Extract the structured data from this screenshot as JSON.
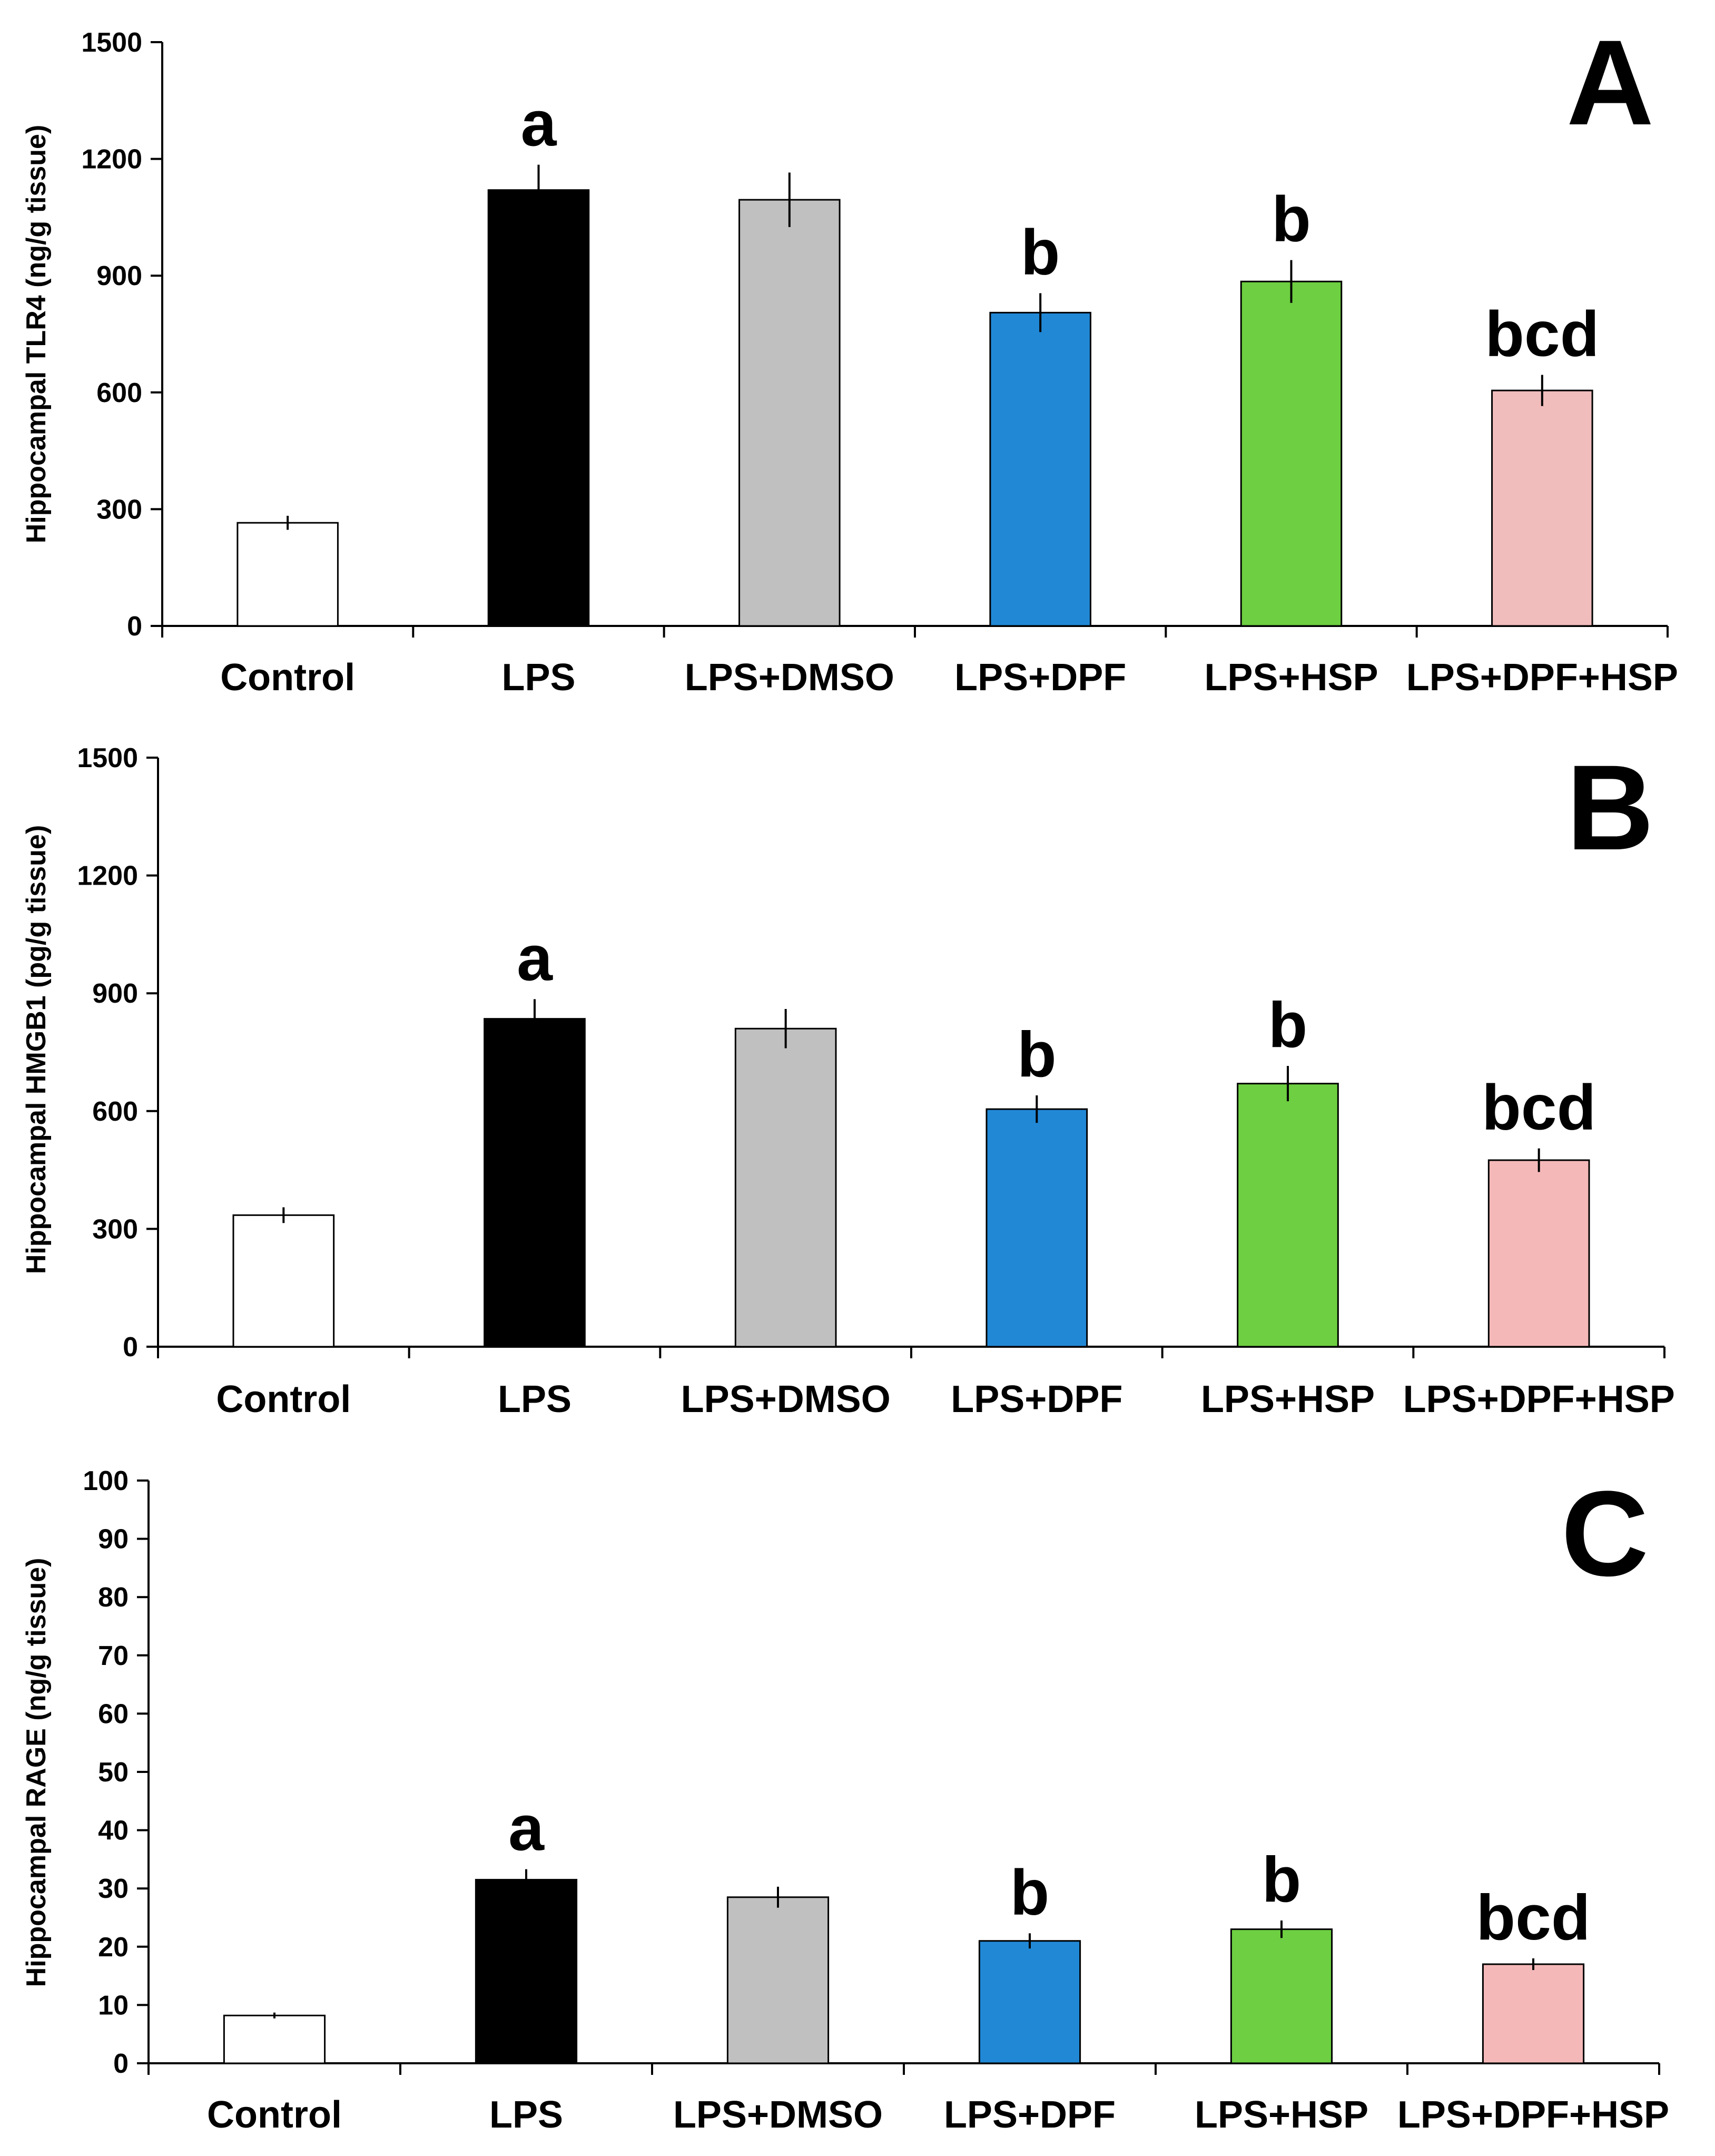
{
  "chart_data": [
    {
      "type": "bar",
      "panel_label": "A",
      "ylabel": "Hippocampal TLR4 (ng/g tissue)",
      "ylim": [
        0,
        1500
      ],
      "yticks": [
        0,
        300,
        600,
        900,
        1200,
        1500
      ],
      "categories": [
        "Control",
        "LPS",
        "LPS+DMSO",
        "LPS+DPF",
        "LPS+HSP",
        "LPS+DPF+HSP"
      ],
      "values": [
        265,
        1120,
        1095,
        805,
        885,
        605
      ],
      "errors": [
        18,
        65,
        70,
        50,
        55,
        40
      ],
      "significance": [
        "",
        "a",
        "",
        "b",
        "b",
        "bcd"
      ],
      "bar_colors": [
        "#ffffff",
        "#000000",
        "#c0c0c0",
        "#2188d6",
        "#6dcf41",
        "#f0bcbc"
      ]
    },
    {
      "type": "bar",
      "panel_label": "B",
      "ylabel": "Hippocampal HMGB1 (pg/g tissue)",
      "ylim": [
        0,
        1500
      ],
      "yticks": [
        0,
        300,
        600,
        900,
        1200,
        1500
      ],
      "categories": [
        "Control",
        "LPS",
        "LPS+DMSO",
        "LPS+DPF",
        "LPS+HSP",
        "LPS+DPF+HSP"
      ],
      "values": [
        335,
        835,
        810,
        605,
        670,
        475
      ],
      "errors": [
        20,
        50,
        50,
        35,
        45,
        30
      ],
      "significance": [
        "",
        "a",
        "",
        "b",
        "b",
        "bcd"
      ],
      "bar_colors": [
        "#ffffff",
        "#000000",
        "#c0c0c0",
        "#2188d6",
        "#6dcf41",
        "#f5b8b8"
      ]
    },
    {
      "type": "bar",
      "panel_label": "C",
      "ylabel": "Hippocampal RAGE (ng/g tissue)",
      "ylim": [
        0,
        100
      ],
      "yticks": [
        0,
        10,
        20,
        30,
        40,
        50,
        60,
        70,
        80,
        90,
        100
      ],
      "categories": [
        "Control",
        "LPS",
        "LPS+DMSO",
        "LPS+DPF",
        "LPS+HSP",
        "LPS+DPF+HSP"
      ],
      "values": [
        8.2,
        31.5,
        28.5,
        21,
        23,
        17
      ],
      "errors": [
        0.5,
        1.8,
        1.8,
        1.3,
        1.5,
        1.0
      ],
      "significance": [
        "",
        "a",
        "",
        "b",
        "b",
        "bcd"
      ],
      "bar_colors": [
        "#ffffff",
        "#000000",
        "#c0c0c0",
        "#2188d6",
        "#6dcf41",
        "#f5b8b8"
      ]
    }
  ]
}
